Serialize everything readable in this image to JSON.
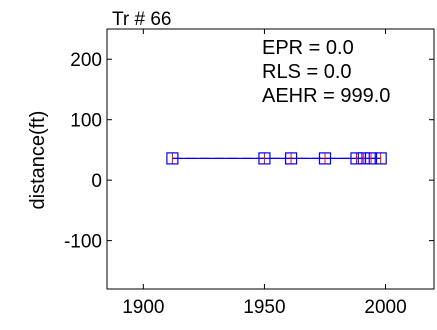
{
  "chart_data": {
    "type": "scatter",
    "title": "Tr # 66",
    "xlabel": "",
    "ylabel": "distance(ft)",
    "xlim": [
      1885,
      2020
    ],
    "ylim": [
      -180,
      250
    ],
    "x_ticks": [
      1900,
      1950,
      2000
    ],
    "y_ticks": [
      200,
      100,
      0,
      -100
    ],
    "annotations": [
      "EPR = 0.0",
      "RLS = 0.0",
      "AEHR = 999.0"
    ],
    "grid": false,
    "series": [
      {
        "marker": "square",
        "marker_color": "#0000ff",
        "x": [
          1912,
          1950,
          1961,
          1975,
          1988,
          1991,
          1994,
          1998
        ],
        "y": [
          36,
          36,
          36,
          36,
          36,
          36,
          36,
          36
        ]
      }
    ],
    "fit_lines": [
      {
        "color": "#ff0000",
        "style": "dashed",
        "x": [
          1912,
          1998
        ],
        "y": [
          36,
          36
        ]
      },
      {
        "color": "#0000ff",
        "style": "solid",
        "x": [
          1912,
          1998
        ],
        "y": [
          36,
          36
        ]
      }
    ],
    "error_bars": {
      "color": "#ff0000"
    }
  }
}
